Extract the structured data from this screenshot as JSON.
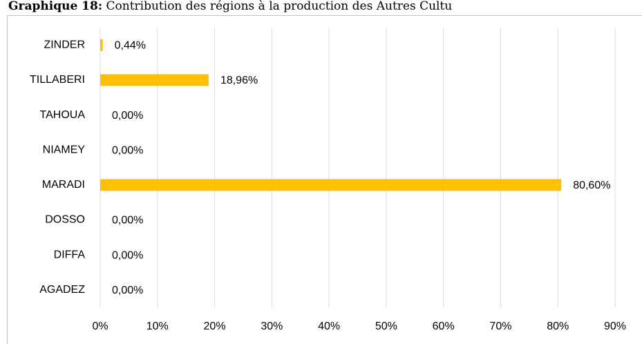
{
  "chart_data": {
    "type": "barh",
    "title": "Graphique 18:",
    "subtitle": "Contribution des régions à la production des Autres Cultu",
    "categories": [
      "AGADEZ",
      "DIFFA",
      "DOSSO",
      "MARADI",
      "NIAMEY",
      "TAHOUA",
      "TILLABERI",
      "ZINDER"
    ],
    "values": [
      0,
      0,
      0,
      80.6,
      0,
      0,
      18.96,
      0.44
    ],
    "value_labels": [
      "0,00%",
      "0,00%",
      "0,00%",
      "80,60%",
      "0,00%",
      "0,00%",
      "18,96%",
      "0,44%"
    ],
    "color": "#ffc000",
    "xlim": [
      0,
      90
    ],
    "xticks": [
      {
        "value": 0,
        "label": "0%"
      },
      {
        "value": 10,
        "label": "10%"
      },
      {
        "value": 20,
        "label": "20%"
      },
      {
        "value": 30,
        "label": "30%"
      },
      {
        "value": 40,
        "label": "40%"
      },
      {
        "value": 50,
        "label": "50%"
      },
      {
        "value": 60,
        "label": "60%"
      },
      {
        "value": 70,
        "label": "70%"
      },
      {
        "value": 80,
        "label": "80%"
      },
      {
        "value": 90,
        "label": "90%"
      }
    ],
    "grid": true
  }
}
